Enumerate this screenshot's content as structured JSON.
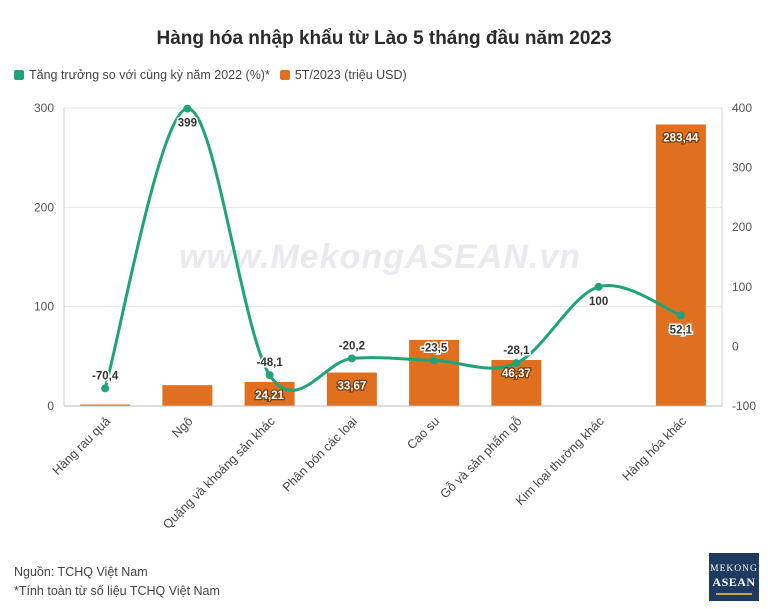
{
  "watermark": "www.MekongASEAN.vn",
  "footer": {
    "source": "Nguồn: TCHQ Việt Nam",
    "note": "*Tính toàn từ số liệu TCHQ Việt Nam"
  },
  "logo": {
    "line1": "MEKONG",
    "line2": "ASEAN"
  },
  "colors": {
    "bar": "#e07020",
    "line": "#1fa37a",
    "grid": "#e6e6e6"
  },
  "chart_data": {
    "type": "bar",
    "title": "Hàng hóa nhập khẩu từ Lào 5 tháng đầu năm 2023",
    "categories": [
      "Hàng rau quả",
      "Ngô",
      "Quặng và khoáng sản khác",
      "Phân bón các loại",
      "Cao su",
      "Gỗ và sản phẩm gỗ",
      "Kim loại thường khác",
      "Hàng hóa khác"
    ],
    "series": [
      {
        "name": "5T/2023 (triệu USD)",
        "type": "bar",
        "axis": "left",
        "values": [
          1.5,
          21,
          24.21,
          33.67,
          66.5,
          46.37,
          0,
          283.44
        ],
        "labels": [
          "",
          "",
          "24,21",
          "33,67",
          "",
          "46,37",
          "",
          "283,44"
        ]
      },
      {
        "name": "Tăng trưởng so với cùng kỳ năm 2022 (%)*",
        "type": "line",
        "axis": "right",
        "values": [
          -70.4,
          399,
          -48.1,
          -20.2,
          -23.5,
          -28.1,
          100,
          52.1
        ],
        "labels": [
          "-70,4",
          "399",
          "-48,1",
          "-20,2",
          "-23,5",
          "-28,1",
          "100",
          "52,1"
        ]
      }
    ],
    "y_left": {
      "range": [
        0,
        300
      ],
      "ticks": [
        "0",
        "100",
        "200",
        "300"
      ]
    },
    "y_right": {
      "range": [
        -100,
        400
      ],
      "ticks": [
        "-100",
        "0",
        "100",
        "200",
        "300",
        "400"
      ]
    },
    "grid": true,
    "legend_position": "top-left"
  }
}
